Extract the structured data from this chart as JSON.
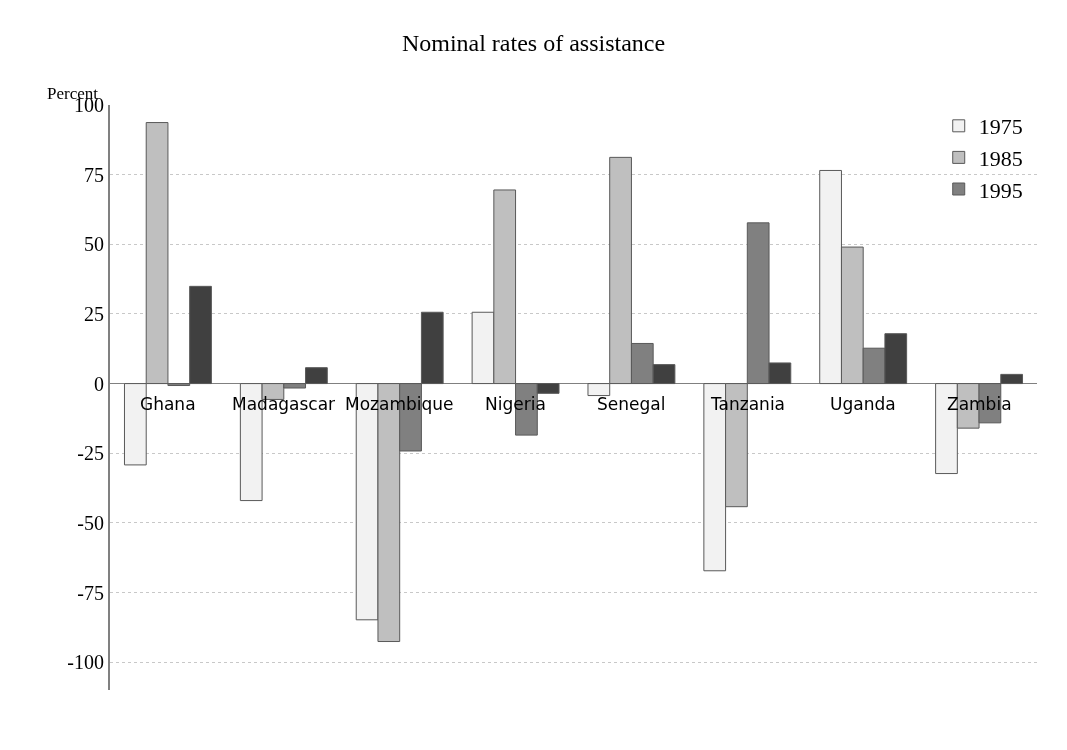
{
  "chart_data": {
    "type": "bar",
    "title": "Nominal rates of assistance",
    "ylabel": "Percent",
    "categories": [
      "Ghana",
      "Madagascar",
      "Mozambique",
      "Nigeria",
      "Senegal",
      "Tanzania",
      "Uganda",
      "Zambia"
    ],
    "series": [
      {
        "name": "1975",
        "color": "#f2f2f2",
        "values": [
          -29.2,
          -42,
          -84.8,
          25.6,
          -4.3,
          -67.2,
          76.5,
          -32.3
        ]
      },
      {
        "name": "1985",
        "color": "#bfbfbf",
        "values": [
          93.7,
          -5.7,
          -92.6,
          69.5,
          81.2,
          -44.2,
          49,
          -16
        ]
      },
      {
        "name": "1995",
        "color": "#808080",
        "values": [
          -0.7,
          -1.6,
          -24.2,
          -18.5,
          14.4,
          57.7,
          12.7,
          -14.1
        ]
      },
      {
        "color": "#404040",
        "values": [
          34.9,
          5.7,
          25.6,
          -3.5,
          6.8,
          7.4,
          17.9,
          3.3
        ]
      }
    ],
    "ylim": [
      -110,
      100
    ],
    "yticks": [
      -100,
      -75,
      -50,
      -25,
      0,
      25,
      50,
      75,
      100
    ],
    "grid": "y",
    "legend": "top right"
  }
}
